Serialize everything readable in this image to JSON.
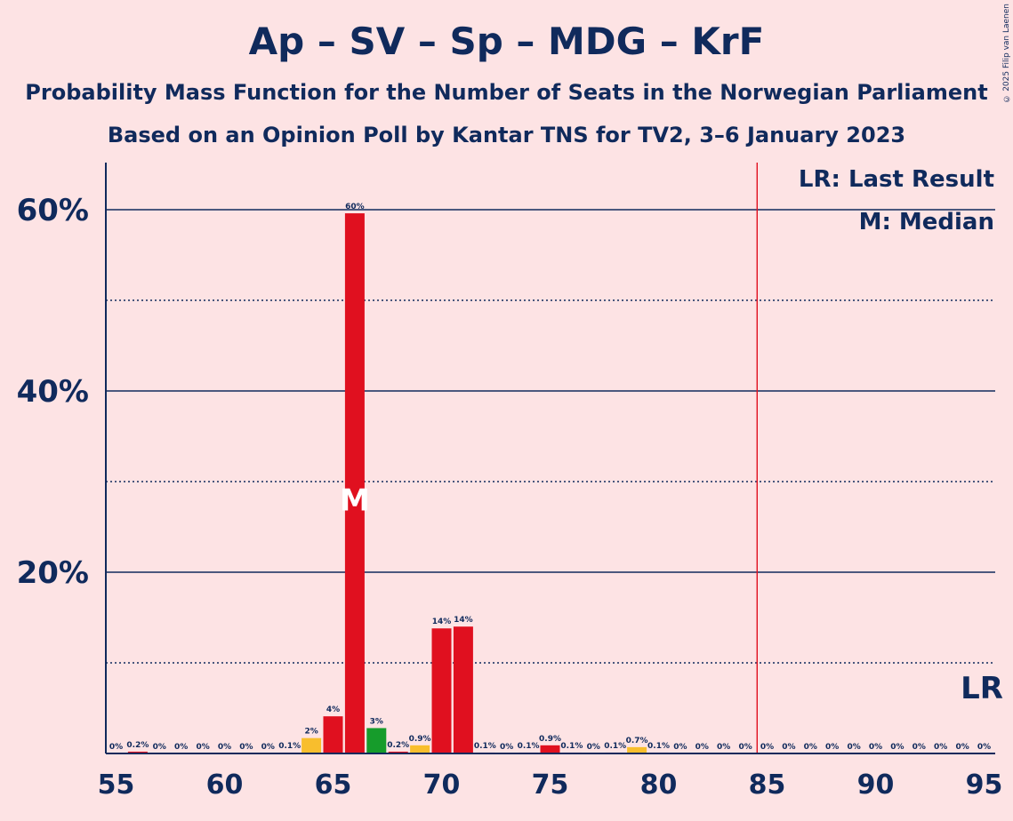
{
  "title": "Ap – SV – Sp – MDG – KrF",
  "subtitle1": "Probability Mass Function for the Number of Seats in the Norwegian Parliament",
  "subtitle2": "Based on an Opinion Poll by Kantar TNS for TV2, 3–6 January 2023",
  "copyright": "© 2025 Filip van Laenen",
  "legend": {
    "lr": "LR: Last Result",
    "median": "M: Median"
  },
  "markers": {
    "lr_label": "LR",
    "median_label": "M"
  },
  "colors": {
    "red": "#e0101f",
    "yellow": "#f8be2d",
    "green": "#169c2b",
    "navy": "#102a5c",
    "lr_line": "#e0101f",
    "background": "#fde3e4"
  },
  "chart_data": {
    "type": "bar",
    "xlim": [
      55,
      95
    ],
    "ylim": [
      0,
      65
    ],
    "x_ticks": [
      "55",
      "60",
      "65",
      "70",
      "75",
      "80",
      "85",
      "90",
      "95"
    ],
    "y_ticks": [
      {
        "value": 20,
        "label": "20%"
      },
      {
        "value": 40,
        "label": "40%"
      },
      {
        "value": 60,
        "label": "60%"
      }
    ],
    "y_dotted_gridlines": [
      10,
      30,
      50
    ],
    "last_result": 85,
    "median": 66,
    "bars": [
      {
        "x": 55,
        "value": 0,
        "label": "0%",
        "color": "red"
      },
      {
        "x": 56,
        "value": 0.2,
        "label": "0.2%",
        "color": "red"
      },
      {
        "x": 57,
        "value": 0,
        "label": "0%",
        "color": "red"
      },
      {
        "x": 58,
        "value": 0,
        "label": "0%",
        "color": "red"
      },
      {
        "x": 59,
        "value": 0,
        "label": "0%",
        "color": "red"
      },
      {
        "x": 60,
        "value": 0,
        "label": "0%",
        "color": "red"
      },
      {
        "x": 61,
        "value": 0,
        "label": "0%",
        "color": "red"
      },
      {
        "x": 62,
        "value": 0,
        "label": "0%",
        "color": "red"
      },
      {
        "x": 63,
        "value": 0.1,
        "label": "0.1%",
        "color": "red"
      },
      {
        "x": 64,
        "value": 1.7,
        "label": "2%",
        "color": "yellow"
      },
      {
        "x": 65,
        "value": 4.1,
        "label": "4%",
        "color": "red"
      },
      {
        "x": 66,
        "value": 59.6,
        "label": "60%",
        "color": "red"
      },
      {
        "x": 67,
        "value": 2.8,
        "label": "3%",
        "color": "green"
      },
      {
        "x": 68,
        "value": 0.2,
        "label": "0.2%",
        "color": "red"
      },
      {
        "x": 69,
        "value": 0.9,
        "label": "0.9%",
        "color": "yellow"
      },
      {
        "x": 70,
        "value": 13.8,
        "label": "14%",
        "color": "red"
      },
      {
        "x": 71,
        "value": 14.0,
        "label": "14%",
        "color": "red"
      },
      {
        "x": 72,
        "value": 0.1,
        "label": "0.1%",
        "color": "red"
      },
      {
        "x": 73,
        "value": 0,
        "label": "0%",
        "color": "red"
      },
      {
        "x": 74,
        "value": 0.1,
        "label": "0.1%",
        "color": "red"
      },
      {
        "x": 75,
        "value": 0.9,
        "label": "0.9%",
        "color": "red"
      },
      {
        "x": 76,
        "value": 0.1,
        "label": "0.1%",
        "color": "red"
      },
      {
        "x": 77,
        "value": 0,
        "label": "0%",
        "color": "red"
      },
      {
        "x": 78,
        "value": 0.1,
        "label": "0.1%",
        "color": "red"
      },
      {
        "x": 79,
        "value": 0.7,
        "label": "0.7%",
        "color": "yellow"
      },
      {
        "x": 80,
        "value": 0.1,
        "label": "0.1%",
        "color": "red"
      },
      {
        "x": 81,
        "value": 0,
        "label": "0%",
        "color": "red"
      },
      {
        "x": 82,
        "value": 0,
        "label": "0%",
        "color": "red"
      },
      {
        "x": 83,
        "value": 0,
        "label": "0%",
        "color": "red"
      },
      {
        "x": 84,
        "value": 0,
        "label": "0%",
        "color": "red"
      },
      {
        "x": 85,
        "value": 0,
        "label": "0%",
        "color": "red"
      },
      {
        "x": 86,
        "value": 0,
        "label": "0%",
        "color": "red"
      },
      {
        "x": 87,
        "value": 0,
        "label": "0%",
        "color": "red"
      },
      {
        "x": 88,
        "value": 0,
        "label": "0%",
        "color": "red"
      },
      {
        "x": 89,
        "value": 0,
        "label": "0%",
        "color": "red"
      },
      {
        "x": 90,
        "value": 0,
        "label": "0%",
        "color": "red"
      },
      {
        "x": 91,
        "value": 0,
        "label": "0%",
        "color": "red"
      },
      {
        "x": 92,
        "value": 0,
        "label": "0%",
        "color": "red"
      },
      {
        "x": 93,
        "value": 0,
        "label": "0%",
        "color": "red"
      },
      {
        "x": 94,
        "value": 0,
        "label": "0%",
        "color": "red"
      },
      {
        "x": 95,
        "value": 0,
        "label": "0%",
        "color": "red"
      }
    ]
  }
}
